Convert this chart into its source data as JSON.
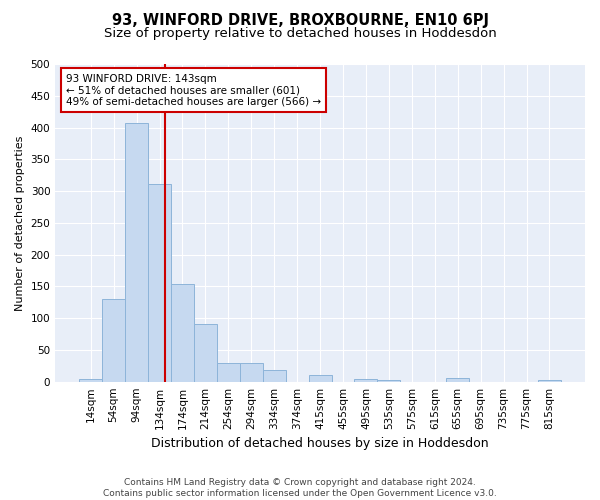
{
  "title": "93, WINFORD DRIVE, BROXBOURNE, EN10 6PJ",
  "subtitle": "Size of property relative to detached houses in Hoddesdon",
  "xlabel": "Distribution of detached houses by size in Hoddesdon",
  "ylabel": "Number of detached properties",
  "bar_labels": [
    "14sqm",
    "54sqm",
    "94sqm",
    "134sqm",
    "174sqm",
    "214sqm",
    "254sqm",
    "294sqm",
    "334sqm",
    "374sqm",
    "415sqm",
    "455sqm",
    "495sqm",
    "535sqm",
    "575sqm",
    "615sqm",
    "655sqm",
    "695sqm",
    "735sqm",
    "775sqm",
    "815sqm"
  ],
  "bar_values": [
    5,
    130,
    407,
    311,
    153,
    90,
    29,
    29,
    19,
    0,
    11,
    0,
    5,
    2,
    0,
    0,
    6,
    0,
    0,
    0,
    2
  ],
  "bar_color": "#c6d9f0",
  "bar_edge_color": "#8db4d9",
  "vline_color": "#cc0000",
  "annotation_text": "93 WINFORD DRIVE: 143sqm\n← 51% of detached houses are smaller (601)\n49% of semi-detached houses are larger (566) →",
  "annotation_box_color": "#ffffff",
  "annotation_box_edge_color": "#cc0000",
  "ylim": [
    0,
    500
  ],
  "yticks": [
    0,
    50,
    100,
    150,
    200,
    250,
    300,
    350,
    400,
    450,
    500
  ],
  "bg_color": "#e8eef8",
  "footer": "Contains HM Land Registry data © Crown copyright and database right 2024.\nContains public sector information licensed under the Open Government Licence v3.0.",
  "title_fontsize": 10.5,
  "subtitle_fontsize": 9.5,
  "xlabel_fontsize": 9,
  "ylabel_fontsize": 8,
  "tick_fontsize": 7.5,
  "footer_fontsize": 6.5,
  "annot_fontsize": 7.5
}
